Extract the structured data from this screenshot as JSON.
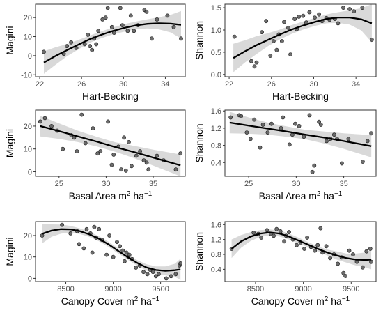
{
  "chart_data": [
    {
      "type": "scatter",
      "xlabel": "Hart-Becking",
      "ylabel": "Magini",
      "xlim": [
        21.6,
        35.9
      ],
      "ylim": [
        -11,
        27
      ],
      "xticks": [
        22,
        26,
        30,
        34
      ],
      "yticks": [
        -10,
        0,
        10,
        20
      ],
      "points": [
        [
          22.4,
          2
        ],
        [
          24.3,
          1
        ],
        [
          24.6,
          5
        ],
        [
          25,
          7
        ],
        [
          25.5,
          4
        ],
        [
          26.3,
          6
        ],
        [
          26.6,
          11
        ],
        [
          26.8,
          5
        ],
        [
          27,
          3
        ],
        [
          27.2,
          9
        ],
        [
          27.4,
          6
        ],
        [
          27.6,
          13
        ],
        [
          28,
          19
        ],
        [
          28.3,
          20
        ],
        [
          28.5,
          25
        ],
        [
          28.9,
          15
        ],
        [
          29.1,
          12
        ],
        [
          29.7,
          25
        ],
        [
          29.9,
          16
        ],
        [
          30.4,
          13
        ],
        [
          30.7,
          21
        ],
        [
          31,
          13
        ],
        [
          31.4,
          16
        ],
        [
          32,
          24
        ],
        [
          32.2,
          23
        ],
        [
          32.7,
          9
        ],
        [
          33.2,
          19
        ],
        [
          34.2,
          21
        ],
        [
          34.8,
          15
        ],
        [
          35.5,
          9
        ]
      ],
      "fit_x": [
        22.4,
        23.5,
        24.6,
        25.7,
        26.8,
        27.9,
        29,
        30.1,
        31.2,
        32.3,
        33.4,
        34.5,
        35.5
      ],
      "fit_y": [
        -3.6,
        -0.2,
        2.9,
        5.8,
        8.7,
        11,
        13,
        14.6,
        15.9,
        16.7,
        17,
        16.8,
        16.2
      ],
      "fit_lower": [
        -9.5,
        -4.8,
        -0.3,
        3.3,
        6.8,
        9.2,
        11.2,
        12.6,
        13.9,
        14.3,
        13.8,
        12.2,
        9
      ],
      "fit_upper": [
        2.3,
        4.4,
        6.1,
        8.3,
        10.6,
        12.8,
        14.8,
        16.6,
        17.9,
        19.1,
        20.2,
        21.4,
        23.4
      ]
    },
    {
      "type": "scatter",
      "xlabel": "Hart-Becking",
      "ylabel": "Shannon",
      "xlim": [
        21.6,
        35.9
      ],
      "ylim": [
        -0.05,
        1.58
      ],
      "xticks": [
        22,
        26,
        30,
        34
      ],
      "yticks": [
        0.0,
        0.5,
        1.0,
        1.5
      ],
      "points": [
        [
          22.5,
          0.85
        ],
        [
          24.1,
          0.3
        ],
        [
          24.4,
          0.18
        ],
        [
          24.6,
          0.27
        ],
        [
          25.1,
          0.95
        ],
        [
          25.5,
          1.2
        ],
        [
          25.9,
          0.42
        ],
        [
          26.2,
          0.75
        ],
        [
          26.5,
          0.55
        ],
        [
          26.7,
          0.9
        ],
        [
          27,
          0.75
        ],
        [
          27.2,
          1.18
        ],
        [
          27.6,
          1.05
        ],
        [
          27.8,
          0.45
        ],
        [
          28.2,
          1.25
        ],
        [
          28.4,
          1.02
        ],
        [
          28.6,
          1.3
        ],
        [
          29,
          1.32
        ],
        [
          29.3,
          1.17
        ],
        [
          29.6,
          1.4
        ],
        [
          30.1,
          1.28
        ],
        [
          30.5,
          1.35
        ],
        [
          30.8,
          1.2
        ],
        [
          31.2,
          1.27
        ],
        [
          31.5,
          1.23
        ],
        [
          32,
          1.25
        ],
        [
          32.3,
          1.15
        ],
        [
          32.8,
          1.5
        ],
        [
          33.4,
          1.47
        ],
        [
          33.8,
          1.42
        ],
        [
          34.6,
          1.5
        ],
        [
          35.5,
          0.78
        ]
      ],
      "fit_x": [
        22.4,
        23.5,
        24.6,
        25.7,
        26.8,
        27.9,
        29,
        30.1,
        31.2,
        32.3,
        33.4,
        34.5,
        35.5
      ],
      "fit_y": [
        0.37,
        0.52,
        0.66,
        0.78,
        0.9,
        1.01,
        1.1,
        1.18,
        1.25,
        1.28,
        1.28,
        1.24,
        1.15
      ],
      "fit_lower": [
        0.05,
        0.27,
        0.46,
        0.64,
        0.79,
        0.91,
        1.01,
        1.09,
        1.15,
        1.16,
        1.12,
        0.99,
        0.72
      ],
      "fit_upper": [
        0.69,
        0.77,
        0.86,
        0.93,
        1.01,
        1.11,
        1.19,
        1.27,
        1.35,
        1.4,
        1.44,
        1.49,
        1.58
      ]
    },
    {
      "type": "scatter",
      "xlabel": "Basal Area m² ha⁻¹",
      "ylabel": "Magini",
      "xlim": [
        22.5,
        38.4
      ],
      "ylim": [
        -2,
        27
      ],
      "xticks": [
        25,
        30,
        35
      ],
      "yticks": [
        0,
        10,
        20
      ],
      "points": [
        [
          23,
          22
        ],
        [
          23.5,
          23.5
        ],
        [
          24.2,
          20
        ],
        [
          24.8,
          18
        ],
        [
          25.4,
          10
        ],
        [
          26.3,
          16
        ],
        [
          26.6,
          15
        ],
        [
          26.9,
          9
        ],
        [
          27.4,
          25
        ],
        [
          27.8,
          12.5
        ],
        [
          28.6,
          19
        ],
        [
          29.1,
          8
        ],
        [
          29.4,
          9
        ],
        [
          30.2,
          22
        ],
        [
          30.6,
          3
        ],
        [
          30.8,
          7.5
        ],
        [
          31.3,
          11
        ],
        [
          31.6,
          1
        ],
        [
          31.9,
          15
        ],
        [
          32.1,
          0.5
        ],
        [
          32.4,
          13
        ],
        [
          32.7,
          2.5
        ],
        [
          33.2,
          7
        ],
        [
          33.6,
          9
        ],
        [
          34,
          5
        ],
        [
          34.3,
          4
        ],
        [
          34.5,
          1
        ],
        [
          35.4,
          7
        ],
        [
          36.1,
          5
        ],
        [
          37.4,
          1
        ],
        [
          37.9,
          8
        ]
      ],
      "fit_x": [
        23,
        25,
        27,
        29,
        31,
        33,
        35,
        37.9
      ],
      "fit_y": [
        20,
        17.8,
        15.5,
        13.2,
        10.8,
        8.6,
        6.2,
        2.8
      ],
      "fit_lower": [
        15.5,
        14.4,
        13,
        11.1,
        8.7,
        5.9,
        2.7,
        -2
      ],
      "fit_upper": [
        24.5,
        21.2,
        18,
        15.3,
        12.9,
        11.3,
        9.7,
        7.6
      ]
    },
    {
      "type": "scatter",
      "xlabel": "Basal Area m² ha⁻¹",
      "ylabel": "Shannon",
      "xlim": [
        22.5,
        38.4
      ],
      "ylim": [
        0.08,
        1.62
      ],
      "xticks": [
        25,
        30,
        35
      ],
      "yticks": [
        0.4,
        0.8,
        1.2,
        1.6
      ],
      "points": [
        [
          23.1,
          1.45
        ],
        [
          24,
          1.5
        ],
        [
          24.2,
          1.48
        ],
        [
          24.8,
          1.1
        ],
        [
          25.2,
          0.95
        ],
        [
          25.6,
          1.4
        ],
        [
          26.2,
          0.75
        ],
        [
          26.5,
          1.28
        ],
        [
          27,
          1.1
        ],
        [
          27.4,
          1.3
        ],
        [
          28.4,
          1.2
        ],
        [
          28.6,
          1.45
        ],
        [
          29.3,
          0.82
        ],
        [
          29.6,
          1.05
        ],
        [
          29.9,
          1.3
        ],
        [
          30.3,
          1.25
        ],
        [
          30.8,
          1.0
        ],
        [
          31.4,
          1.5
        ],
        [
          31.7,
          0.18
        ],
        [
          31.9,
          0.33
        ],
        [
          32.4,
          1.35
        ],
        [
          32.6,
          1.28
        ],
        [
          33.2,
          0.9
        ],
        [
          33.6,
          0.95
        ],
        [
          34,
          1.05
        ],
        [
          34.3,
          0.95
        ],
        [
          34.8,
          0.38
        ],
        [
          35.5,
          0.95
        ],
        [
          37,
          0.42
        ],
        [
          37.5,
          0.9
        ],
        [
          37.9,
          1.08
        ]
      ],
      "fit_x": [
        23,
        25,
        27,
        29,
        31,
        33,
        35,
        37.9
      ],
      "fit_y": [
        1.33,
        1.26,
        1.19,
        1.12,
        1.05,
        0.98,
        0.9,
        0.78
      ],
      "fit_lower": [
        1.08,
        1.07,
        1.05,
        1.0,
        0.94,
        0.84,
        0.72,
        0.52
      ],
      "fit_upper": [
        1.58,
        1.45,
        1.33,
        1.24,
        1.16,
        1.12,
        1.08,
        1.04
      ]
    },
    {
      "type": "scatter",
      "xlabel": "Canopy Cover m² ha⁻¹",
      "ylabel": "Magini",
      "xlim": [
        8180,
        9760
      ],
      "ylim": [
        -1.5,
        26.5
      ],
      "xticks": [
        8500,
        9000,
        9500
      ],
      "yticks": [
        0,
        10,
        20
      ],
      "points": [
        [
          8250,
          20
        ],
        [
          8460,
          25
        ],
        [
          8550,
          21
        ],
        [
          8620,
          22
        ],
        [
          8640,
          16
        ],
        [
          8690,
          14
        ],
        [
          8720,
          23
        ],
        [
          8760,
          21
        ],
        [
          8780,
          12
        ],
        [
          8800,
          24
        ],
        [
          8820,
          19
        ],
        [
          8850,
          23
        ],
        [
          8880,
          18
        ],
        [
          8930,
          11
        ],
        [
          8960,
          20
        ],
        [
          9000,
          10
        ],
        [
          9040,
          17
        ],
        [
          9070,
          15
        ],
        [
          9100,
          13
        ],
        [
          9120,
          8
        ],
        [
          9140,
          12
        ],
        [
          9160,
          10
        ],
        [
          9170,
          11
        ],
        [
          9200,
          9
        ],
        [
          9240,
          5
        ],
        [
          9280,
          6
        ],
        [
          9320,
          3
        ],
        [
          9360,
          2
        ],
        [
          9390,
          4
        ],
        [
          9420,
          3
        ],
        [
          9450,
          1
        ],
        [
          9480,
          2
        ],
        [
          9560,
          0
        ],
        [
          9610,
          1
        ],
        [
          9660,
          2
        ],
        [
          9700,
          6
        ],
        [
          9710,
          7
        ]
      ],
      "fit_x": [
        8250,
        8350,
        8450,
        8550,
        8650,
        8750,
        8850,
        8950,
        9050,
        9150,
        9250,
        9350,
        9450,
        9550,
        9650,
        9710
      ],
      "fit_y": [
        20.8,
        22.3,
        23,
        22.9,
        22,
        20.5,
        18.5,
        15.9,
        12.9,
        10,
        7.3,
        5.1,
        3.9,
        3.5,
        3.8,
        4.2
      ],
      "fit_lower": [
        16.3,
        19.4,
        20.9,
        21.3,
        20.7,
        19.3,
        17.3,
        14.7,
        11.7,
        8.8,
        6,
        3.6,
        2.2,
        1.4,
        0.8,
        -0.8
      ],
      "fit_upper": [
        25.3,
        25.2,
        25.1,
        24.5,
        23.3,
        21.7,
        19.7,
        17.1,
        14.1,
        11.2,
        8.6,
        6.6,
        5.6,
        5.6,
        6.8,
        9.2
      ]
    },
    {
      "type": "scatter",
      "xlabel": "Canopy Cover m² ha⁻¹",
      "ylabel": "Shannon",
      "xlim": [
        8180,
        9760
      ],
      "ylim": [
        0.07,
        1.68
      ],
      "xticks": [
        8500,
        9000,
        9500
      ],
      "yticks": [
        0.4,
        0.8,
        1.2,
        1.6
      ],
      "points": [
        [
          8250,
          0.95
        ],
        [
          8480,
          1.38
        ],
        [
          8530,
          1.35
        ],
        [
          8560,
          1.25
        ],
        [
          8620,
          1.45
        ],
        [
          8660,
          1.35
        ],
        [
          8690,
          1.3
        ],
        [
          8720,
          1.48
        ],
        [
          8760,
          1.42
        ],
        [
          8800,
          1.15
        ],
        [
          8820,
          1.3
        ],
        [
          8850,
          1.4
        ],
        [
          8890,
          1.2
        ],
        [
          8930,
          1.05
        ],
        [
          8970,
          1.12
        ],
        [
          9010,
          0.95
        ],
        [
          9040,
          1.25
        ],
        [
          9080,
          1.0
        ],
        [
          9120,
          0.9
        ],
        [
          9150,
          1.05
        ],
        [
          9180,
          1.5
        ],
        [
          9200,
          0.85
        ],
        [
          9240,
          1.02
        ],
        [
          9280,
          0.7
        ],
        [
          9320,
          0.8
        ],
        [
          9360,
          0.55
        ],
        [
          9400,
          0.72
        ],
        [
          9420,
          0.3
        ],
        [
          9440,
          0.22
        ],
        [
          9480,
          0.9
        ],
        [
          9520,
          0.8
        ],
        [
          9560,
          0.6
        ],
        [
          9620,
          0.45
        ],
        [
          9660,
          0.88
        ],
        [
          9700,
          0.95
        ],
        [
          9710,
          0.6
        ]
      ],
      "fit_x": [
        8250,
        8350,
        8450,
        8550,
        8650,
        8750,
        8850,
        8950,
        9050,
        9150,
        9250,
        9350,
        9450,
        9550,
        9650,
        9710
      ],
      "fit_y": [
        0.95,
        1.15,
        1.28,
        1.36,
        1.39,
        1.36,
        1.28,
        1.17,
        1.06,
        0.95,
        0.85,
        0.77,
        0.7,
        0.66,
        0.65,
        0.66
      ],
      "fit_lower": [
        0.7,
        0.98,
        1.16,
        1.27,
        1.31,
        1.28,
        1.2,
        1.09,
        0.99,
        0.88,
        0.77,
        0.66,
        0.58,
        0.5,
        0.45,
        0.4
      ],
      "fit_upper": [
        1.2,
        1.32,
        1.4,
        1.45,
        1.47,
        1.44,
        1.36,
        1.25,
        1.13,
        1.02,
        0.93,
        0.88,
        0.82,
        0.82,
        0.85,
        0.92
      ]
    }
  ],
  "colors": {
    "point_fill": "#555555",
    "point_stroke": "#1a1a1a",
    "fit_line": "#000000",
    "ribbon": "#d9d9d9",
    "axis": "#333333",
    "tick_text": "#4d4d4d"
  }
}
